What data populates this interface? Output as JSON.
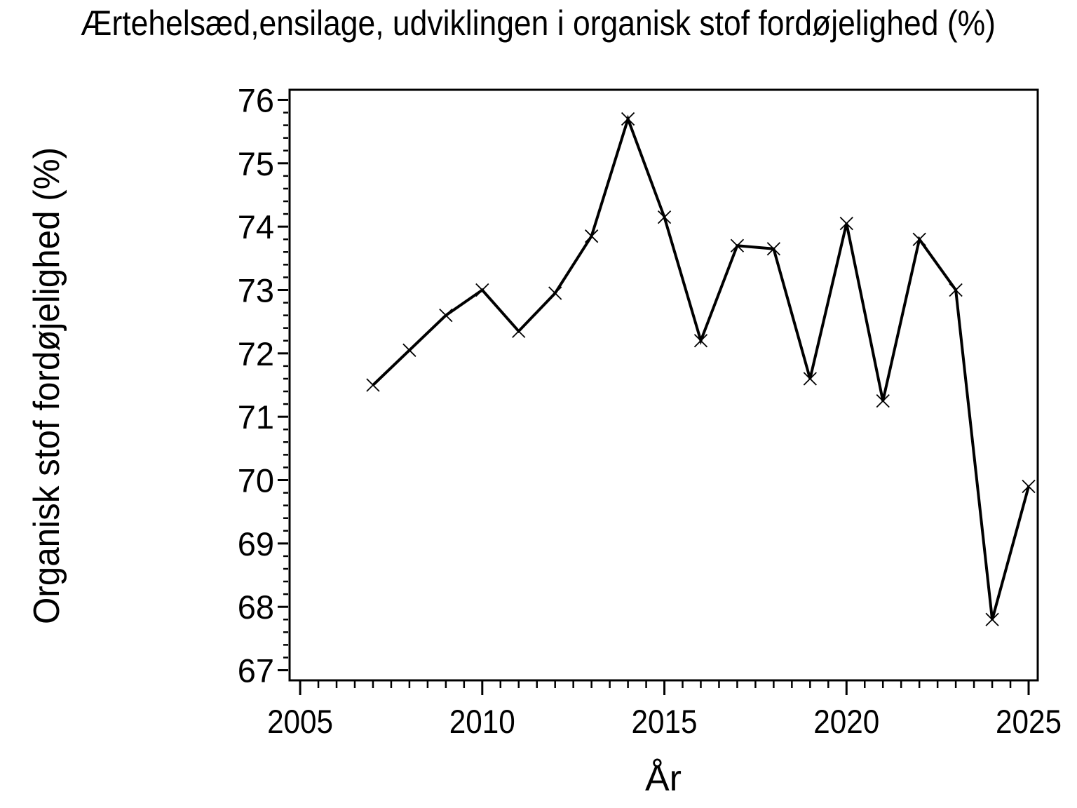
{
  "chart_data": {
    "type": "line",
    "title": "Ærtehelsæd,ensilage, udviklingen i organisk stof fordøjelighed (%)",
    "xlabel": "År",
    "ylabel": "Organisk stof fordøjelighed (%)",
    "x": [
      2007,
      2008,
      2009,
      2010,
      2011,
      2012,
      2013,
      2014,
      2015,
      2016,
      2017,
      2018,
      2019,
      2020,
      2021,
      2022,
      2023,
      2024,
      2025
    ],
    "values": [
      71.5,
      72.05,
      72.6,
      73.0,
      72.35,
      72.95,
      73.85,
      75.7,
      74.15,
      72.2,
      73.7,
      73.65,
      71.6,
      74.05,
      71.25,
      73.8,
      73.0,
      67.8,
      69.9
    ],
    "xlim": [
      2004.71,
      2025.25
    ],
    "ylim": [
      66.84,
      76.16
    ],
    "x_major_ticks": [
      2005,
      2010,
      2015,
      2020,
      2025
    ],
    "x_minor_step": 0.5,
    "y_major_ticks": [
      67,
      68,
      69,
      70,
      71,
      72,
      73,
      74,
      75,
      76
    ],
    "y_minor_step": 0.2,
    "marker": "x",
    "grid": false,
    "legend": null,
    "line_color": "#000000",
    "background_color": "#ffffff"
  }
}
